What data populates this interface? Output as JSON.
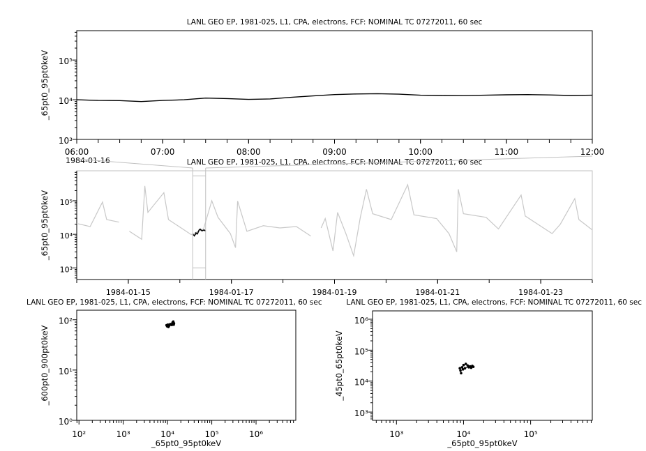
{
  "chart_data": [
    {
      "id": "top",
      "type": "line",
      "title": "LANL GEO EP, 1981-025, L1, CPA, electrons, FCF: NOMINAL TC 07272011, 60 sec",
      "xlabel": "",
      "ylabel": "_65pt0_95pt0keV",
      "date_label": "1984-01-16",
      "x_scale": "time",
      "y_scale": "log",
      "xlim": [
        "1984-01-16T06:00",
        "1984-01-16T12:00"
      ],
      "ylim": [
        1000,
        550000
      ],
      "xticks": [
        "1984-01-16T06:00",
        "1984-01-16T07:00",
        "1984-01-16T08:00",
        "1984-01-16T09:00",
        "1984-01-16T10:00",
        "1984-01-16T11:00",
        "1984-01-16T12:00"
      ],
      "xtick_labels": [
        "06:00",
        "07:00",
        "08:00",
        "09:00",
        "10:00",
        "11:00",
        "12:00"
      ],
      "yticks": [
        1000,
        10000,
        100000
      ],
      "ytick_labels": [
        "10³",
        "10⁴",
        "10⁵"
      ],
      "grid": false,
      "series": [
        {
          "color": "#000000",
          "x": [
            "1984-01-16T06:00",
            "1984-01-16T06:15",
            "1984-01-16T06:30",
            "1984-01-16T06:45",
            "1984-01-16T07:00",
            "1984-01-16T07:15",
            "1984-01-16T07:30",
            "1984-01-16T07:45",
            "1984-01-16T08:00",
            "1984-01-16T08:15",
            "1984-01-16T08:30",
            "1984-01-16T08:45",
            "1984-01-16T09:00",
            "1984-01-16T09:15",
            "1984-01-16T09:30",
            "1984-01-16T09:45",
            "1984-01-16T10:00",
            "1984-01-16T10:15",
            "1984-01-16T10:30",
            "1984-01-16T10:45",
            "1984-01-16T11:00",
            "1984-01-16T11:15",
            "1984-01-16T11:30",
            "1984-01-16T11:45",
            "1984-01-16T12:00"
          ],
          "y": [
            10000,
            9600,
            9500,
            9000,
            9600,
            10000,
            11000,
            10700,
            10200,
            10500,
            11500,
            12500,
            13500,
            14000,
            14200,
            13800,
            13000,
            12800,
            12700,
            13000,
            13300,
            13500,
            13200,
            12800,
            13000
          ]
        }
      ]
    },
    {
      "id": "middle",
      "type": "line",
      "title": "LANL GEO EP, 1981-025, L1, CPA, electrons, FCF: NOMINAL TC 07272011, 60 sec",
      "xlabel": "",
      "ylabel": "_65pt0_95pt0keV",
      "x_scale": "time",
      "y_scale": "log",
      "xlim": [
        "1984-01-14T00:00",
        "1984-01-24T00:00"
      ],
      "ylim": [
        450,
        780000
      ],
      "xticks": [
        "1984-01-15T00:00",
        "1984-01-17T00:00",
        "1984-01-19T00:00",
        "1984-01-21T00:00",
        "1984-01-23T00:00"
      ],
      "xtick_labels": [
        "1984-01-15",
        "1984-01-17",
        "1984-01-19",
        "1984-01-21",
        "1984-01-23"
      ],
      "yticks": [
        1000,
        10000,
        100000
      ],
      "ytick_labels": [
        "10³",
        "10⁴",
        "10⁵"
      ],
      "grid": false,
      "highlight": {
        "from": "1984-01-16T06:00",
        "to": "1984-01-16T12:00",
        "color": "#000000"
      },
      "series": [
        {
          "color": "#c8c8c8",
          "x": [
            "1984-01-14T00:00",
            "1984-01-14T06:14",
            "1984-01-14T12:00",
            "1984-01-14T13:55",
            "1984-01-14T19:40",
            null,
            "1984-01-15T00:29",
            "1984-01-15T06:14",
            "1984-01-15T07:41",
            "1984-01-15T09:07",
            "1984-01-15T16:34",
            "1984-01-15T18:43",
            "1984-01-16T05:17",
            "1984-01-16T11:02",
            "1984-01-16T14:53",
            "1984-01-16T17:46",
            "1984-01-16T23:31",
            "1984-01-17T01:55",
            "1984-01-17T02:53",
            "1984-01-17T07:12",
            "1984-01-17T14:53",
            "1984-01-17T22:34",
            "1984-01-18T06:14",
            "1984-01-18T12:58",
            null,
            "1984-01-18T17:46",
            "1984-01-18T19:41",
            "1984-01-18T23:17",
            "1984-01-19T01:26",
            "1984-01-19T05:17",
            "1984-01-19T08:53",
            "1984-01-19T12:00",
            "1984-01-19T14:53",
            "1984-01-19T17:46",
            "1984-01-20T02:24",
            "1984-01-20T10:05",
            "1984-01-20T12:58",
            "1984-01-20T23:31",
            "1984-01-21T05:17",
            "1984-01-21T08:53",
            "1984-01-21T09:36",
            "1984-01-21T12:00",
            "1984-01-21T22:34",
            "1984-01-22T04:19",
            "1984-01-22T14:53",
            "1984-01-22T16:48",
            "1984-01-23T05:17",
            "1984-01-23T09:07",
            "1984-01-23T15:50",
            "1984-01-23T17:46",
            "1984-01-24T00:00"
          ],
          "y": [
            21000,
            17000,
            91000,
            27500,
            23000,
            null,
            12300,
            7100,
            275000,
            45000,
            174000,
            27500,
            9800,
            14500,
            100000,
            32000,
            10500,
            4000,
            98000,
            12300,
            18000,
            15500,
            17000,
            8900,
            null,
            15500,
            29500,
            3200,
            45000,
            10500,
            2300,
            32000,
            220000,
            41000,
            27500,
            300000,
            38000,
            29500,
            10500,
            3000,
            220000,
            41000,
            32000,
            14500,
            148000,
            35000,
            10500,
            20000,
            115000,
            27500,
            13500
          ]
        }
      ]
    },
    {
      "id": "bottom-left",
      "type": "scatter",
      "title": "LANL GEO EP, 1981-025, L1, CPA, electrons, FCF: NOMINAL TC 07272011, 60 sec",
      "xlabel": "_65pt0_95pt0keV",
      "ylabel": "_600pt0_900pt0keV",
      "x_scale": "log",
      "y_scale": "log",
      "xlim": [
        89,
        7900000
      ],
      "ylim": [
        1,
        155
      ],
      "xticks": [
        100,
        1000,
        10000,
        100000,
        1000000
      ],
      "xtick_labels": [
        "10²",
        "10³",
        "10⁴",
        "10⁵",
        "10⁶"
      ],
      "yticks": [
        1,
        10,
        100
      ],
      "ytick_labels": [
        "10⁰",
        "10¹",
        "10²"
      ],
      "grid": false,
      "series": [
        {
          "color": "#000000",
          "x": [
            9500,
            9800,
            10200,
            10800,
            11500,
            12500,
            13000,
            13500,
            13800,
            12800,
            10500,
            14000
          ],
          "y": [
            78,
            74,
            80,
            76,
            82,
            79,
            88,
            92,
            80,
            84,
            72,
            85
          ]
        }
      ]
    },
    {
      "id": "bottom-right",
      "type": "scatter",
      "title": "LANL GEO EP, 1981-025, L1, CPA, electrons, FCF: NOMINAL TC 07272011, 60 sec",
      "xlabel": "_65pt0_95pt0keV",
      "ylabel": "_45pt0_65pt0keV",
      "x_scale": "log",
      "y_scale": "log",
      "xlim": [
        440,
        830000
      ],
      "ylim": [
        540,
        1860000
      ],
      "xticks": [
        1000,
        10000,
        100000
      ],
      "xtick_labels": [
        "10³",
        "10⁴",
        "10⁵"
      ],
      "yticks": [
        1000,
        10000,
        100000,
        1000000
      ],
      "ytick_labels": [
        "10³",
        "10⁴",
        "10⁵",
        "10⁶"
      ],
      "grid": false,
      "series": [
        {
          "color": "#000000",
          "x": [
            9200,
            9000,
            8800,
            9500,
            10000,
            10800,
            11500,
            12000,
            12500,
            13500,
            14000,
            13000,
            12000,
            10500,
            9800
          ],
          "y": [
            18000,
            22000,
            26000,
            28000,
            33000,
            36000,
            32000,
            28000,
            30000,
            31000,
            29000,
            27000,
            29000,
            26000,
            24000
          ]
        }
      ]
    }
  ]
}
